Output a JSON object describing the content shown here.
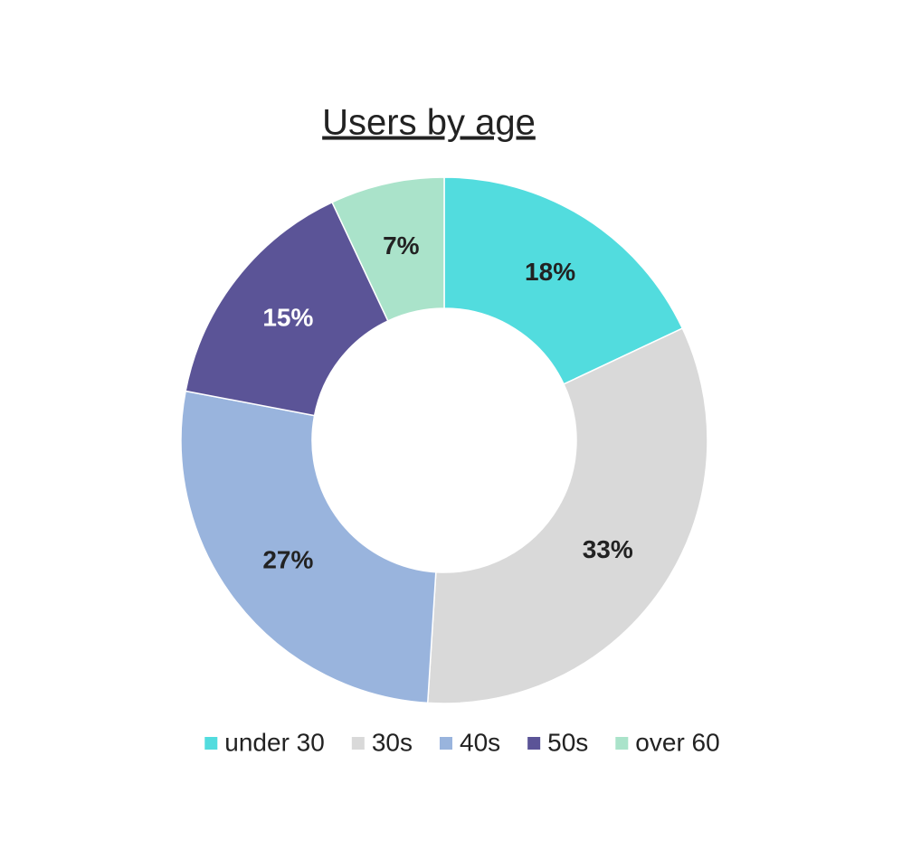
{
  "chart_data": {
    "type": "donut",
    "title": "Users by age",
    "categories": [
      "under 30",
      "30s",
      "40s",
      "50s",
      "over 60"
    ],
    "values": [
      18,
      33,
      27,
      15,
      7
    ],
    "value_labels": [
      "18%",
      "33%",
      "27%",
      "15%",
      "7%"
    ],
    "colors": [
      "#52dcde",
      "#d9d9d9",
      "#99b4dd",
      "#5b5497",
      "#aae3ca"
    ],
    "legend": "bottom"
  }
}
